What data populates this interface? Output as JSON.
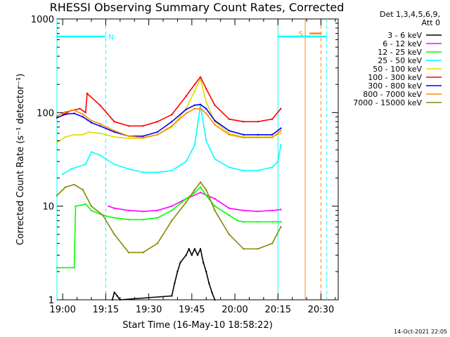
{
  "chart_data": {
    "type": "line",
    "title": "RHESSI Observing Summary Count Rates, Corrected",
    "xlabel": "Start Time (16-May-10 18:58:22)",
    "ylabel": "Corrected Count Rate (s⁻¹ detector⁻¹)",
    "y_scale": "log",
    "ylim": [
      1,
      1000
    ],
    "xlim": [
      "18:58",
      "20:36"
    ],
    "x_ticks": [
      "19:00",
      "19:15",
      "19:30",
      "19:45",
      "20:00",
      "20:15",
      "20:30"
    ],
    "x_tick_minutes": [
      2,
      17,
      32,
      47,
      62,
      77,
      92
    ],
    "y_ticks": [
      "1",
      "10",
      "100",
      "1000"
    ],
    "y_tick_values": [
      1,
      10,
      100,
      1000
    ],
    "legend_header": [
      "Det 1,3,4,5,6,9,",
      "Att 0"
    ],
    "legend_position": "right",
    "series": [
      {
        "name": "3 - 6 keV",
        "color": "#000000",
        "x": [
          19.3,
          20,
          21,
          22,
          40,
          41,
          42,
          43,
          45,
          46,
          47,
          48,
          49,
          50,
          51,
          52,
          53,
          54,
          55
        ],
        "y": [
          1,
          1.2,
          1.1,
          1,
          1.1,
          1.5,
          2,
          2.5,
          3,
          3.5,
          3,
          3.5,
          3,
          3.5,
          2.5,
          2,
          1.5,
          1.2,
          1
        ]
      },
      {
        "name": "6 - 12 keV",
        "color": "#ff00ff",
        "x": [
          18,
          20,
          25,
          30,
          35,
          40,
          45,
          50,
          55,
          60,
          65,
          70,
          75,
          78
        ],
        "y": [
          10,
          9.5,
          9,
          8.8,
          9,
          10,
          12,
          14,
          12,
          9.5,
          9,
          8.8,
          9,
          9.2
        ]
      },
      {
        "name": "12 - 25 keV",
        "color": "#00ff00",
        "x": [
          0,
          6,
          6.5,
          10,
          12,
          16,
          20,
          25,
          30,
          35,
          40,
          45,
          48,
          50,
          52,
          55,
          60,
          63,
          65,
          70,
          75,
          78
        ],
        "y": [
          2.2,
          2.2,
          10,
          10.5,
          9,
          8,
          7.5,
          7.2,
          7.2,
          7.5,
          9,
          12,
          14,
          16,
          13,
          10,
          8,
          7,
          6.8,
          6.8,
          6.8,
          6.8
        ]
      },
      {
        "name": "25 - 50 keV",
        "color": "#00ffff",
        "x": [
          2,
          5,
          10,
          12,
          15,
          20,
          25,
          30,
          35,
          40,
          45,
          48,
          50,
          52,
          55,
          60,
          65,
          70,
          75,
          77,
          78
        ],
        "y": [
          22,
          25,
          28,
          38,
          35,
          28,
          25,
          23,
          23,
          24,
          30,
          45,
          120,
          50,
          32,
          26,
          24,
          24,
          26,
          30,
          45
        ]
      },
      {
        "name": "50 - 100 keV",
        "color": "#dddd00",
        "x": [
          0,
          3,
          6,
          9,
          11,
          15,
          20,
          25,
          30,
          35,
          40,
          45,
          48,
          50,
          52,
          55,
          60,
          65,
          70,
          75,
          78
        ],
        "y": [
          48,
          55,
          58,
          58,
          62,
          60,
          55,
          53,
          53,
          58,
          70,
          110,
          170,
          230,
          130,
          80,
          60,
          55,
          55,
          55,
          60
        ]
      },
      {
        "name": "100 - 300 keV",
        "color": "#ff0000",
        "x": [
          2,
          5,
          8,
          10,
          10.5,
          15,
          20,
          25,
          30,
          35,
          40,
          45,
          48,
          50,
          52,
          55,
          60,
          65,
          70,
          75,
          78
        ],
        "y": [
          95,
          105,
          110,
          100,
          160,
          120,
          80,
          72,
          72,
          80,
          95,
          150,
          200,
          240,
          180,
          120,
          85,
          80,
          80,
          85,
          110
        ]
      },
      {
        "name": "300 - 800 keV",
        "color": "#0000ff",
        "x": [
          0,
          3,
          6,
          9,
          12,
          15,
          20,
          25,
          30,
          35,
          40,
          45,
          48,
          50,
          52,
          55,
          60,
          65,
          70,
          75,
          78
        ],
        "y": [
          88,
          96,
          98,
          90,
          78,
          72,
          62,
          56,
          56,
          62,
          80,
          108,
          120,
          122,
          110,
          82,
          64,
          58,
          58,
          58,
          68
        ]
      },
      {
        "name": "800 - 7000 keV",
        "color": "#ff8800",
        "x": [
          0,
          3,
          6,
          9,
          12,
          15,
          20,
          25,
          30,
          35,
          40,
          45,
          48,
          50,
          52,
          55,
          60,
          65,
          70,
          75,
          78
        ],
        "y": [
          92,
          102,
          106,
          96,
          82,
          76,
          64,
          56,
          54,
          58,
          72,
          98,
          110,
          110,
          98,
          74,
          58,
          54,
          54,
          54,
          64
        ]
      },
      {
        "name": "7000 - 15000 keV",
        "color": "#888800",
        "x": [
          0,
          3,
          6,
          9,
          12,
          16,
          20,
          25,
          30,
          35,
          40,
          45,
          48,
          50,
          52,
          55,
          60,
          65,
          70,
          75,
          78
        ],
        "y": [
          13,
          16,
          17,
          15,
          10,
          8,
          5,
          3.2,
          3.2,
          4,
          7,
          11,
          15,
          18,
          15,
          9,
          5,
          3.5,
          3.5,
          4,
          6
        ]
      }
    ],
    "annotations": [
      {
        "label": "N",
        "color": "#00ffff",
        "x_start": 0,
        "x_end": 17,
        "y": 650
      },
      {
        "label": "S",
        "color": "#ff8800",
        "x_start": 88,
        "x_end": 92,
        "y": 700
      },
      {
        "label": "",
        "color": "#00ffff",
        "x_start": 77,
        "x_end": 94,
        "y": 650
      }
    ],
    "vertical_lines": [
      {
        "x": 0,
        "color": "#00ffff",
        "style": "solid"
      },
      {
        "x": 17,
        "color": "#00ffff",
        "style": "dashed"
      },
      {
        "x": 77,
        "color": "#00ffff",
        "style": "solid"
      },
      {
        "x": 86.5,
        "color": "#ff8800",
        "style": "solid"
      },
      {
        "x": 92,
        "color": "#ff8800",
        "style": "dashed"
      },
      {
        "x": 94,
        "color": "#00ffff",
        "style": "dashed"
      }
    ]
  },
  "footer": {
    "timestamp": "14-Oct-2021 22:05"
  }
}
